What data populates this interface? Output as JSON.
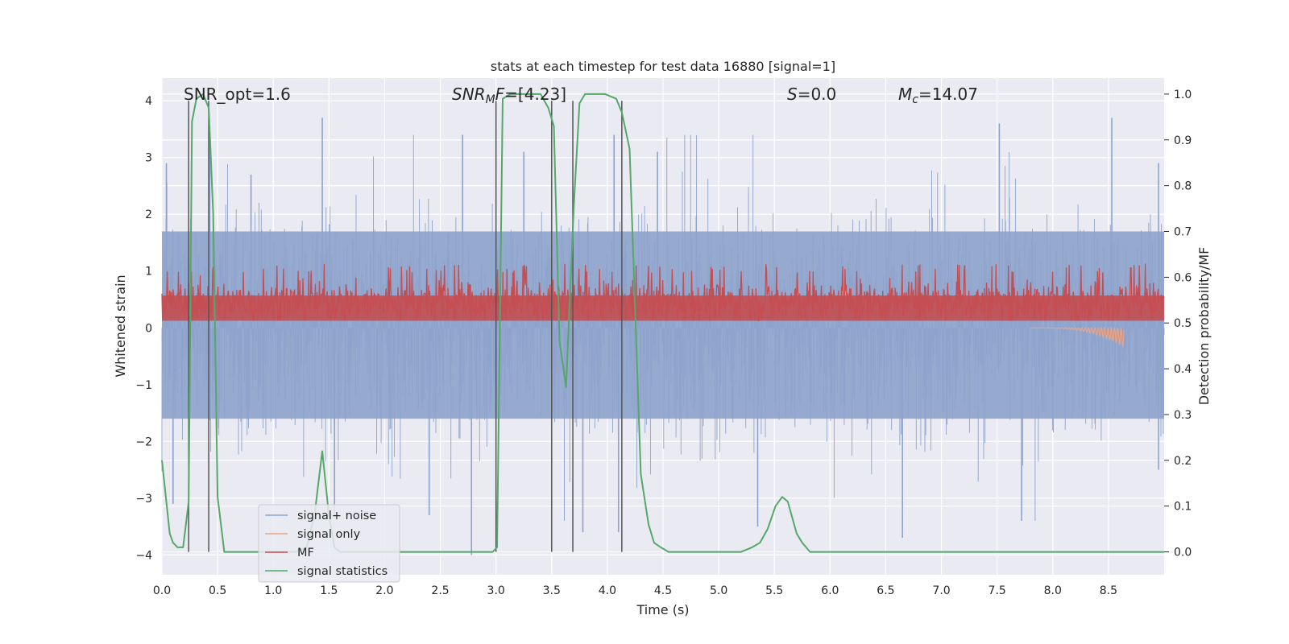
{
  "chart_data": {
    "type": "line",
    "title": "stats at each timestep for test data 16880 [signal=1]",
    "xlabel": "Time (s)",
    "ylabel_left": "Whitened strain",
    "ylabel_right": "Detection probability/MF",
    "xlim": [
      0.0,
      9.0
    ],
    "ylim_left": [
      -4.35,
      4.4
    ],
    "ylim_right": [
      -0.05,
      1.035
    ],
    "xticks": [
      "0.0",
      "0.5",
      "1.0",
      "1.5",
      "2.0",
      "2.5",
      "3.0",
      "3.5",
      "4.0",
      "4.5",
      "5.0",
      "5.5",
      "6.0",
      "6.5",
      "7.0",
      "7.5",
      "8.0",
      "8.5"
    ],
    "yticks_left": [
      "−4",
      "−3",
      "−2",
      "−1",
      "0",
      "1",
      "2",
      "3",
      "4"
    ],
    "yticks_right": [
      "0.0",
      "0.1",
      "0.2",
      "0.3",
      "0.4",
      "0.5",
      "0.6",
      "0.7",
      "0.8",
      "0.9",
      "1.0"
    ],
    "annotations": {
      "snr_opt": "SNR_opt=1.6",
      "snr_mf_main": "SNR",
      "snr_mf_sub": "M",
      "snr_mf_rest": "F=[4.23]",
      "s_italic": "S",
      "s_rest": "=0.0",
      "mc_main": "M",
      "mc_sub": "c",
      "mc_rest": "=14.07"
    },
    "legend": {
      "location": "lower left",
      "entries": [
        {
          "label": "signal+ noise",
          "color": "#8ea3cc"
        },
        {
          "label": "signal only",
          "color": "#e8a48a"
        },
        {
          "label": "MF",
          "color": "#c44e52"
        },
        {
          "label": "signal statistics",
          "color": "#55a868"
        }
      ]
    },
    "noise_band": {
      "name": "signal+ noise",
      "axis": "left",
      "typical_upper": 1.7,
      "typical_lower": -1.6,
      "spike_extremes": [
        {
          "t": 0.04,
          "v": 2.9
        },
        {
          "t": 0.43,
          "v": 3.4
        },
        {
          "t": 0.8,
          "v": 2.7
        },
        {
          "t": 1.44,
          "v": 3.7
        },
        {
          "t": 2.7,
          "v": 3.4
        },
        {
          "t": 3.25,
          "v": 3.1
        },
        {
          "t": 4.06,
          "v": 3.4
        },
        {
          "t": 4.45,
          "v": 3.1
        },
        {
          "t": 7.52,
          "v": 3.6
        },
        {
          "t": 8.53,
          "v": 3.7
        },
        {
          "t": 8.95,
          "v": 2.9
        },
        {
          "t": 0.1,
          "v": -3.1
        },
        {
          "t": 1.55,
          "v": -3.3
        },
        {
          "t": 2.4,
          "v": -3.3
        },
        {
          "t": 2.78,
          "v": -4.0
        },
        {
          "t": 3.78,
          "v": -3.6
        },
        {
          "t": 4.1,
          "v": -3.6
        },
        {
          "t": 5.35,
          "v": -3.5
        },
        {
          "t": 6.65,
          "v": -3.7
        },
        {
          "t": 7.72,
          "v": -3.4
        },
        {
          "t": 8.95,
          "v": -2.5
        }
      ]
    },
    "mf_band": {
      "name": "MF",
      "axis": "right",
      "baseline": 0.5,
      "typical_max": 0.6,
      "peak_max": 0.63
    },
    "signal_only": {
      "name": "signal only",
      "axis": "left",
      "t_start": 7.8,
      "t_end": 8.64,
      "v_end_low": -0.35
    },
    "signal_statistics": {
      "name": "signal statistics",
      "axis": "right",
      "t": [
        0.0,
        0.07,
        0.1,
        0.14,
        0.19,
        0.24,
        0.27,
        0.31,
        0.37,
        0.42,
        0.46,
        0.5,
        0.56,
        0.62,
        0.7,
        0.8,
        1.0,
        1.1,
        1.2,
        1.3,
        1.37,
        1.44,
        1.5,
        1.55,
        1.6,
        1.8,
        2.0,
        2.5,
        2.9,
        2.97,
        3.01,
        3.06,
        3.13,
        3.2,
        3.3,
        3.4,
        3.47,
        3.52,
        3.57,
        3.63,
        3.7,
        3.75,
        3.8,
        3.88,
        3.98,
        4.08,
        4.13,
        4.2,
        4.3,
        4.37,
        4.42,
        4.48,
        4.55,
        4.7,
        5.0,
        5.2,
        5.3,
        5.37,
        5.44,
        5.51,
        5.57,
        5.62,
        5.7,
        5.75,
        5.82,
        6.0,
        7.0,
        8.0,
        9.0
      ],
      "values": [
        0.2,
        0.04,
        0.02,
        0.01,
        0.01,
        0.11,
        0.94,
        0.99,
        1.0,
        0.97,
        0.74,
        0.12,
        0.0,
        0.0,
        0.0,
        0.0,
        0.0,
        0.0,
        0.0,
        0.01,
        0.08,
        0.22,
        0.08,
        0.01,
        0.0,
        0.0,
        0.0,
        0.0,
        0.0,
        0.0,
        0.01,
        0.99,
        1.0,
        1.0,
        1.0,
        1.0,
        0.97,
        0.93,
        0.46,
        0.36,
        0.76,
        0.98,
        1.0,
        1.0,
        1.0,
        0.99,
        0.96,
        0.88,
        0.17,
        0.06,
        0.02,
        0.01,
        0.0,
        0.0,
        0.0,
        0.0,
        0.01,
        0.02,
        0.05,
        0.1,
        0.12,
        0.11,
        0.04,
        0.02,
        0.0,
        0.0,
        0.0,
        0.0,
        0.0
      ]
    },
    "vertical_lines_t": [
      0.24,
      0.42,
      3.0,
      3.5,
      3.69,
      4.13
    ]
  }
}
